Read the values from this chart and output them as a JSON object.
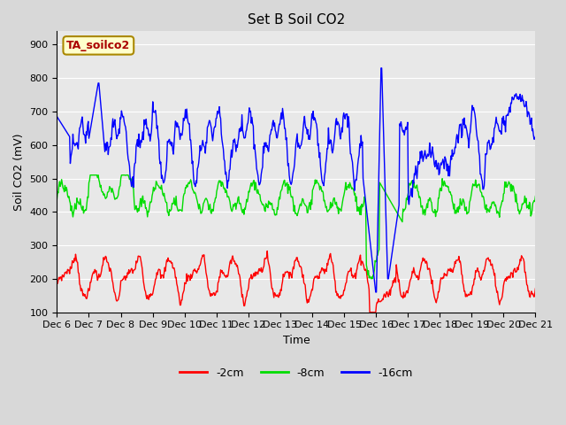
{
  "title": "Set B Soil CO2",
  "ylabel": "Soil CO2 (mV)",
  "xlabel": "Time",
  "ylim": [
    100,
    940
  ],
  "xlim": [
    0,
    1
  ],
  "yticks": [
    100,
    200,
    300,
    400,
    500,
    600,
    700,
    800,
    900
  ],
  "xtick_labels": [
    "Dec 6",
    "Dec 7",
    "Dec 8",
    "Dec 9",
    "Dec 10",
    "Dec 11",
    "Dec 12",
    "Dec 13",
    "Dec 14",
    "Dec 15",
    "Dec 16",
    "Dec 17",
    "Dec 18",
    "Dec 19",
    "Dec 20",
    "Dec 21"
  ],
  "colors": {
    "2cm": "#ff0000",
    "8cm": "#00dd00",
    "16cm": "#0000ff"
  },
  "legend_labels": [
    "-2cm",
    "-8cm",
    "-16cm"
  ],
  "annotation_box": "TA_soilco2",
  "annotation_box_color": "#ffffcc",
  "annotation_box_edge": "#aa8800",
  "annotation_text_color": "#aa0000",
  "bg_color": "#e8e8e8",
  "grid_color": "#ffffff",
  "linewidth": 1.0,
  "title_fontsize": 11,
  "label_fontsize": 9,
  "tick_fontsize": 8
}
